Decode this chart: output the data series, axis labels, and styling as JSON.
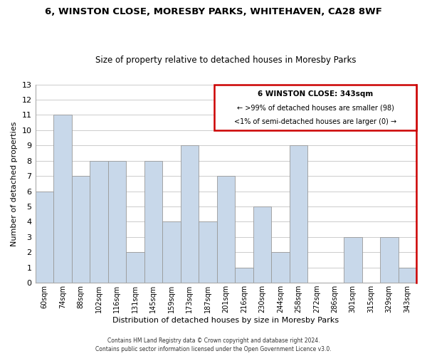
{
  "title1": "6, WINSTON CLOSE, MORESBY PARKS, WHITEHAVEN, CA28 8WF",
  "title2": "Size of property relative to detached houses in Moresby Parks",
  "xlabel": "Distribution of detached houses by size in Moresby Parks",
  "ylabel": "Number of detached properties",
  "bar_labels": [
    "60sqm",
    "74sqm",
    "88sqm",
    "102sqm",
    "116sqm",
    "131sqm",
    "145sqm",
    "159sqm",
    "173sqm",
    "187sqm",
    "201sqm",
    "216sqm",
    "230sqm",
    "244sqm",
    "258sqm",
    "272sqm",
    "286sqm",
    "301sqm",
    "315sqm",
    "329sqm",
    "343sqm"
  ],
  "bar_values": [
    6,
    11,
    7,
    8,
    8,
    2,
    8,
    4,
    9,
    4,
    7,
    1,
    5,
    2,
    9,
    0,
    0,
    3,
    0,
    3,
    1
  ],
  "bar_color": "#c8d8ea",
  "bar_edge_color": "#999999",
  "box_color": "#cc0000",
  "box_text_line1": "6 WINSTON CLOSE: 343sqm",
  "box_text_line2": "← >99% of detached houses are smaller (98)",
  "box_text_line3": "<1% of semi-detached houses are larger (0) →",
  "ylim": [
    0,
    13
  ],
  "yticks": [
    0,
    1,
    2,
    3,
    4,
    5,
    6,
    7,
    8,
    9,
    10,
    11,
    12,
    13
  ],
  "footer_line1": "Contains HM Land Registry data © Crown copyright and database right 2024.",
  "footer_line2": "Contains public sector information licensed under the Open Government Licence v3.0.",
  "background_color": "#ffffff",
  "grid_color": "#cccccc"
}
